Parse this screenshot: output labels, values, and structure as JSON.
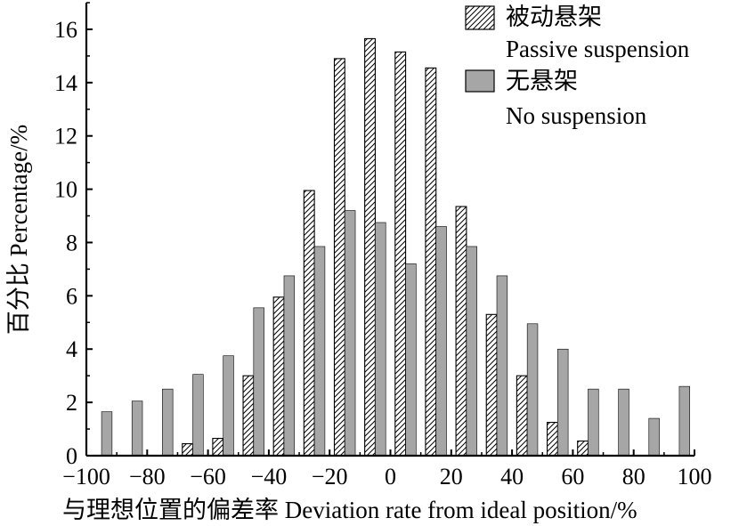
{
  "chart_data": {
    "type": "bar",
    "xlabel": "与理想位置的偏差率 Deviation rate from ideal position/%",
    "ylabel": "百分比 Percentage/%",
    "xlim": [
      -100,
      100
    ],
    "ylim": [
      0,
      17
    ],
    "x_ticks": [
      -100,
      -80,
      -60,
      -40,
      -20,
      0,
      20,
      40,
      60,
      80,
      100
    ],
    "y_ticks": [
      0,
      2,
      4,
      6,
      8,
      10,
      12,
      14,
      16
    ],
    "x_tick_labels": [
      "−100",
      "−80",
      "−60",
      "−40",
      "−20",
      "0",
      "20",
      "40",
      "60",
      "80",
      "100"
    ],
    "y_tick_labels": [
      "0",
      "2",
      "4",
      "6",
      "8",
      "10",
      "12",
      "14",
      "16"
    ],
    "grid": false,
    "legend_position": "top-right",
    "bin_centers": [
      -95,
      -85,
      -75,
      -65,
      -55,
      -45,
      -35,
      -25,
      -15,
      -5,
      5,
      15,
      25,
      35,
      45,
      55,
      65,
      75,
      85,
      95
    ],
    "series": [
      {
        "name": "被动悬架 Passive suspension",
        "legend_line1": "被动悬架",
        "legend_line2": "Passive suspension",
        "pattern": "hatched",
        "color": "#000000",
        "values": [
          0,
          0,
          0,
          0.45,
          0.65,
          3.0,
          5.95,
          9.95,
          14.9,
          15.65,
          15.15,
          14.55,
          9.35,
          5.3,
          3.0,
          1.25,
          0.55,
          0,
          0,
          0
        ]
      },
      {
        "name": "无悬架 No suspension",
        "legend_line1": "无悬架",
        "legend_line2": "No suspension",
        "pattern": "solid",
        "color": "#a6a6a6",
        "values": [
          1.65,
          2.05,
          2.5,
          3.05,
          3.75,
          5.55,
          6.75,
          7.85,
          9.2,
          8.75,
          7.2,
          8.6,
          7.85,
          6.75,
          4.95,
          4.0,
          2.5,
          2.5,
          1.4,
          2.6
        ]
      }
    ]
  }
}
